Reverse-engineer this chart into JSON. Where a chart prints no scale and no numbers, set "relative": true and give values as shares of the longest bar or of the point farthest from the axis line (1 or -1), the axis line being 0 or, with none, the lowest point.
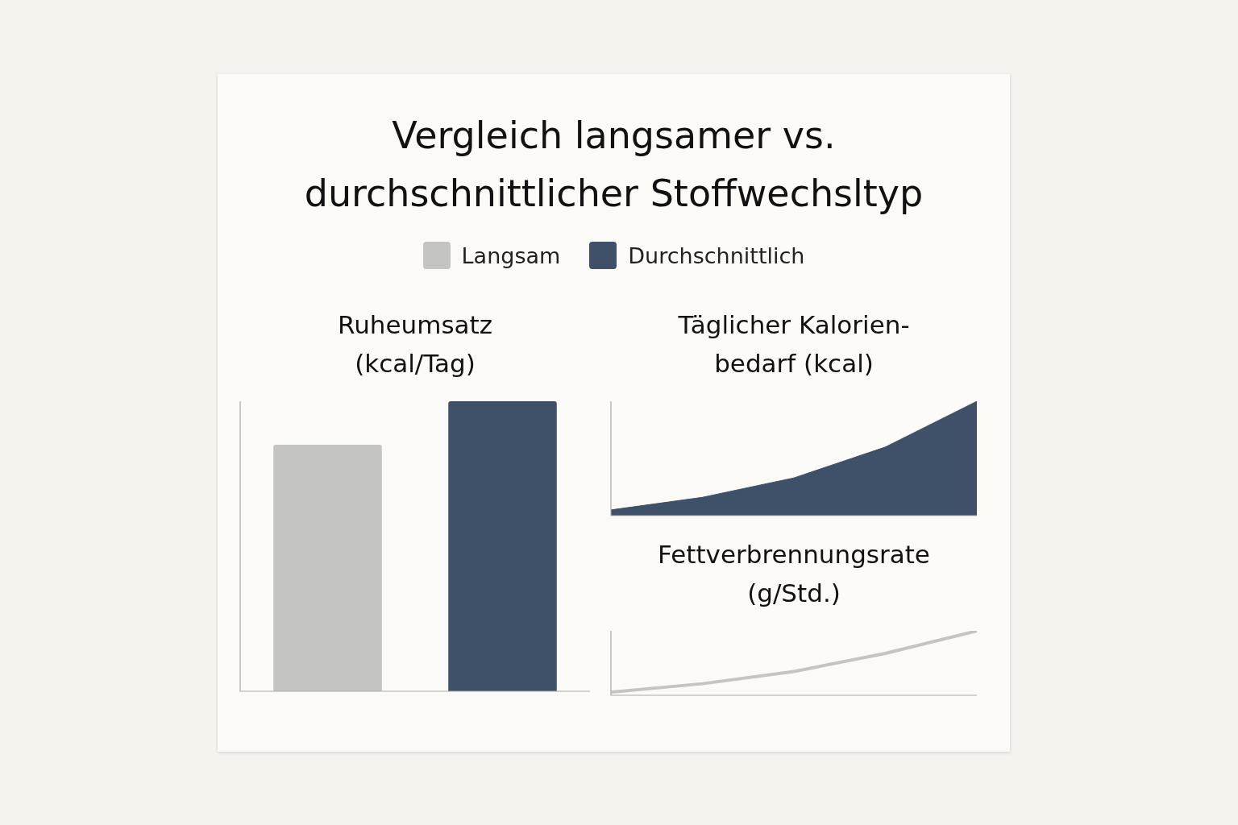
{
  "chart_data": [
    {
      "type": "other",
      "title": "Vergleich langsamer vs. durchschnittlicher Stoffwechsltyp"
    },
    {
      "type": "bar",
      "title": "Ruheumsatz (kcal/Tag)",
      "relative": true,
      "stacked": true,
      "categories": [
        null,
        null
      ],
      "legend": "top",
      "series": [
        {
          "name": "Langsam",
          "color": "#c4c4c0",
          "values": [
            0.85,
            null
          ]
        },
        {
          "name": "Durchschnittlich",
          "color": "#3f5168",
          "values": [
            null,
            1
          ]
        }
      ]
    },
    {
      "type": "area",
      "title": "Täglicher Kalorien-bedarf (kcal)",
      "relative": true,
      "categories": [
        null,
        null,
        null,
        null,
        null
      ],
      "series": [
        {
          "color": "#3f5168",
          "values": [
            0.05,
            0.16,
            0.33,
            0.6,
            1
          ]
        }
      ]
    },
    {
      "type": "line",
      "title": "Fettverbrennungsrate (g/Std.)",
      "relative": true,
      "categories": [
        null,
        null,
        null,
        null,
        null
      ],
      "series": [
        {
          "color": "#c4c4c0",
          "values": [
            0.05,
            0.18,
            0.37,
            0.65,
            1
          ]
        }
      ]
    }
  ]
}
